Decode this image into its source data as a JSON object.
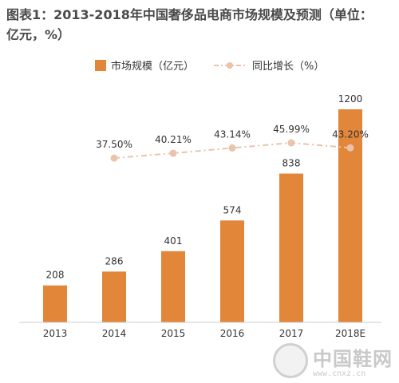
{
  "colors": {
    "bar": "#E2863A",
    "line": "#E9C3AA",
    "text": "#333333",
    "axis": "#888888"
  },
  "chart_data": {
    "type": "bar",
    "title": "图表1：2013-2018年中国奢侈品电商市场规模及预测（单位：亿元，%）",
    "categories": [
      "2013",
      "2014",
      "2015",
      "2016",
      "2017",
      "2018E"
    ],
    "series": [
      {
        "name": "市场规模（亿元）",
        "type": "bar",
        "values": [
          208,
          286,
          401,
          574,
          838,
          1200
        ],
        "labels": [
          "208",
          "286",
          "401",
          "574",
          "838",
          "1200"
        ]
      },
      {
        "name": "同比增长（%）",
        "type": "line",
        "values": [
          null,
          37.5,
          40.21,
          43.14,
          45.99,
          43.2
        ],
        "labels": [
          "",
          "37.50%",
          "40.21%",
          "43.14%",
          "45.99%",
          "43.20%"
        ]
      }
    ],
    "ylim": [
      0,
      1260
    ],
    "line_ylim": [
      0,
      55
    ],
    "legend_position": "top",
    "grid": false
  },
  "watermark": {
    "name": "中国鞋网",
    "url": "www.cnxz.cn"
  }
}
